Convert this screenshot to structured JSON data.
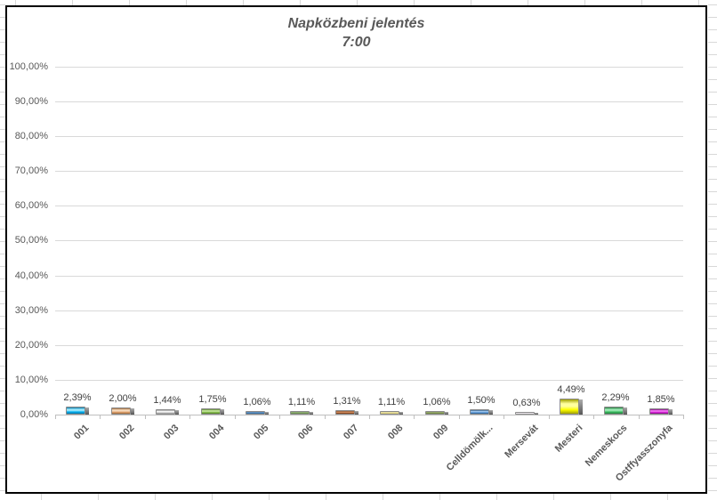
{
  "chart": {
    "title_line1": "Napközbeni jelentés",
    "title_line2": "7:00"
  },
  "chart_data": {
    "type": "bar",
    "title": "Napközbeni jelentés",
    "subtitle": "7:00",
    "categories": [
      "001",
      "002",
      "003",
      "004",
      "005",
      "006",
      "007",
      "008",
      "009",
      "Celldömölk...",
      "Mersevát",
      "Mesteri",
      "Nemeskocs",
      "Ostffyasszonyfa"
    ],
    "values": [
      2.39,
      2.0,
      1.44,
      1.75,
      1.06,
      1.11,
      1.31,
      1.11,
      1.06,
      1.5,
      0.63,
      4.49,
      2.29,
      1.85
    ],
    "value_labels": [
      "2,39%",
      "2,00%",
      "1,44%",
      "1,75%",
      "1,06%",
      "1,11%",
      "1,31%",
      "1,11%",
      "1,06%",
      "1,50%",
      "0,63%",
      "4,49%",
      "2,29%",
      "1,85%"
    ],
    "bar_colors": [
      {
        "light": "#9fe8fb",
        "main": "#00aeef",
        "dark": "#0076a8"
      },
      {
        "light": "#f5d9bc",
        "main": "#dfa26e",
        "dark": "#9c6431"
      },
      {
        "light": "#f5f5f5",
        "main": "#c9c9c9",
        "dark": "#8c8c8c"
      },
      {
        "light": "#c2e39b",
        "main": "#7eb843",
        "dark": "#4e7a22"
      },
      {
        "light": "#7faedc",
        "main": "#2e74b5",
        "dark": "#1c4970"
      },
      {
        "light": "#aecb95",
        "main": "#6c994c",
        "dark": "#3f6126"
      },
      {
        "light": "#d89a70",
        "main": "#a6511e",
        "dark": "#66300f"
      },
      {
        "light": "#fbf6cf",
        "main": "#eee284",
        "dark": "#ac9c34"
      },
      {
        "light": "#b4c68d",
        "main": "#75923c",
        "dark": "#465a1e"
      },
      {
        "light": "#9cc3ea",
        "main": "#4a8cd3",
        "dark": "#29567f"
      },
      {
        "light": "#ffffff",
        "main": "#f4ecf4",
        "dark": "#bdaebd"
      },
      {
        "light": "#ffff9e",
        "main": "#ffff00",
        "dark": "#a0a000"
      },
      {
        "light": "#9ce8b4",
        "main": "#3dbe62",
        "dark": "#1f7a3a"
      },
      {
        "light": "#f274f2",
        "main": "#d619d6",
        "dark": "#750775"
      }
    ],
    "ytick_labels": [
      "100,00%",
      "90,00%",
      "80,00%",
      "70,00%",
      "60,00%",
      "50,00%",
      "40,00%",
      "30,00%",
      "20,00%",
      "10,00%",
      "0,00%"
    ],
    "ylim": [
      0,
      100
    ],
    "ytick_step": 10,
    "grid": true,
    "legend": false,
    "xlabel": "",
    "ylabel": ""
  }
}
